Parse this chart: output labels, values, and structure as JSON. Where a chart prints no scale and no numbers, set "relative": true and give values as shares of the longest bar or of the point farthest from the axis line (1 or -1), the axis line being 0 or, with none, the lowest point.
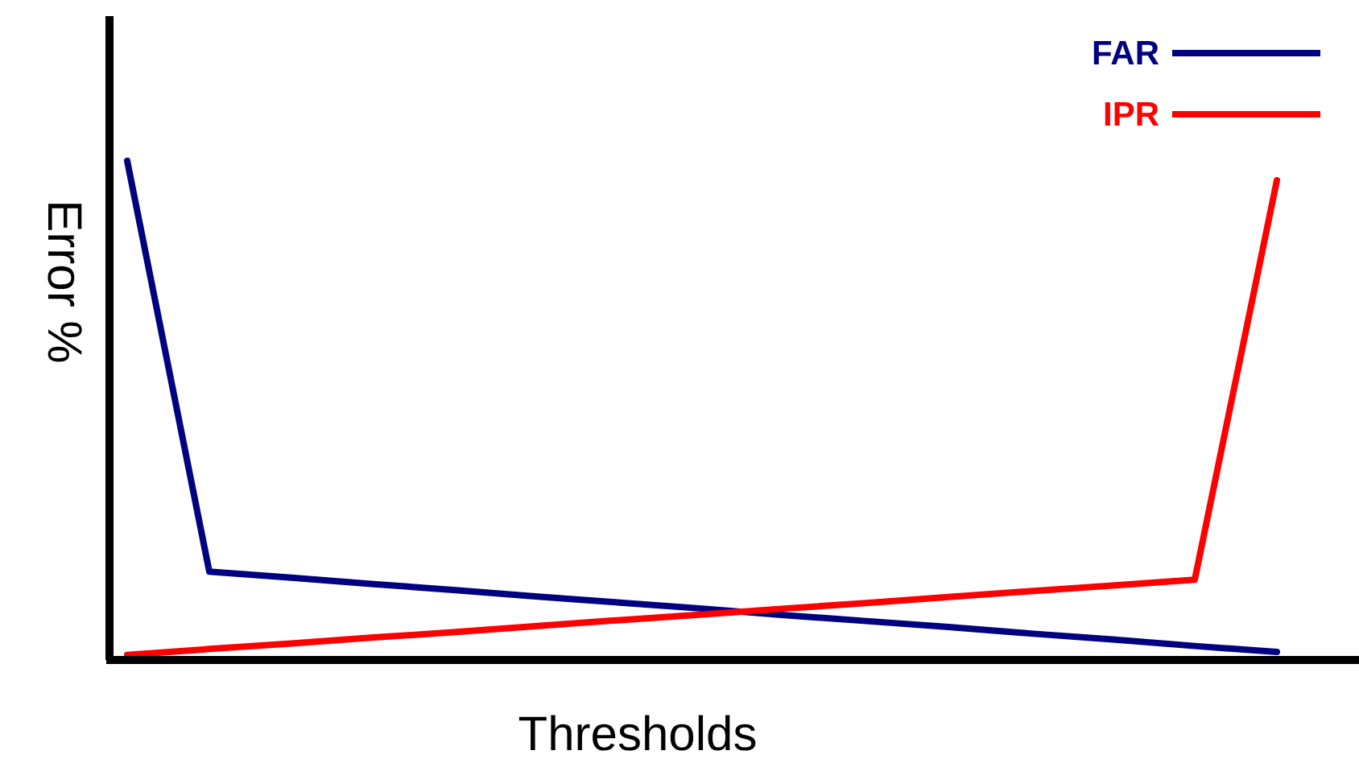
{
  "chart_data": {
    "type": "line",
    "xlabel": "Thresholds",
    "ylabel": "Error %",
    "relative": true,
    "legend": "top right",
    "categories": [
      null,
      null,
      null,
      null,
      null,
      null,
      null,
      null,
      null,
      null,
      null,
      null,
      null,
      null,
      null
    ],
    "series": [
      {
        "name": "FAR",
        "color": "#000080",
        "values": [
          1,
          0.177,
          0.165,
          0.152,
          0.14,
          0.127,
          0.115,
          0.103,
          0.09,
          0.078,
          0.066,
          0.053,
          0.041,
          0.028,
          0.016
        ]
      },
      {
        "name": "IPR",
        "color": "#ff0000",
        "values": [
          0.01,
          0.022,
          0.033,
          0.045,
          0.056,
          0.068,
          0.08,
          0.091,
          0.103,
          0.114,
          0.126,
          0.138,
          0.149,
          0.161,
          0.961
        ]
      }
    ]
  }
}
